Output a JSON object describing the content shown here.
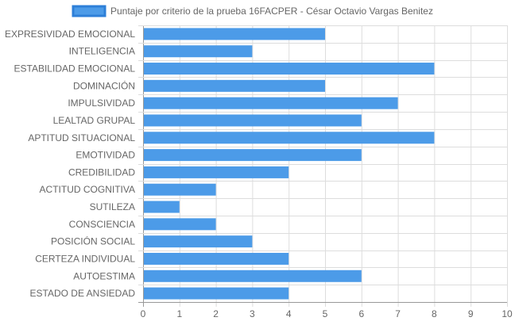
{
  "chart_data": {
    "type": "bar",
    "orientation": "horizontal",
    "categories": [
      "EXPRESIVIDAD EMOCIONAL",
      "INTELIGENCIA",
      "ESTABILIDAD EMOCIONAL",
      "DOMINACIÓN",
      "IMPULSIVIDAD",
      "LEALTAD GRUPAL",
      "APTITUD SITUACIONAL",
      "EMOTIVIDAD",
      "CREDIBILIDAD",
      "ACTITUD COGNITIVA",
      "SUTILEZA",
      "CONSCIENCIA",
      "POSICIÓN SOCIAL",
      "CERTEZA INDIVIDUAL",
      "AUTOESTIMA",
      "ESTADO DE ANSIEDAD"
    ],
    "series": [
      {
        "name": "Puntaje por criterio de la prueba 16FACPER - César Octavio Vargas Benitez",
        "values": [
          5,
          3,
          8,
          5,
          7,
          6,
          8,
          6,
          4,
          2,
          1,
          2,
          3,
          4,
          6,
          4
        ]
      }
    ],
    "xlim": [
      0,
      10
    ],
    "x_ticks": [
      "0",
      "1",
      "2",
      "3",
      "4",
      "5",
      "6",
      "7",
      "8",
      "9",
      "10"
    ],
    "grid": true,
    "legend_position": "top-center",
    "colors": {
      "bar_fill": "#4c9be8",
      "bar_stroke": "#2d7fd8",
      "grid": "#dddddd",
      "axis": "#999999",
      "text": "#666666"
    }
  }
}
